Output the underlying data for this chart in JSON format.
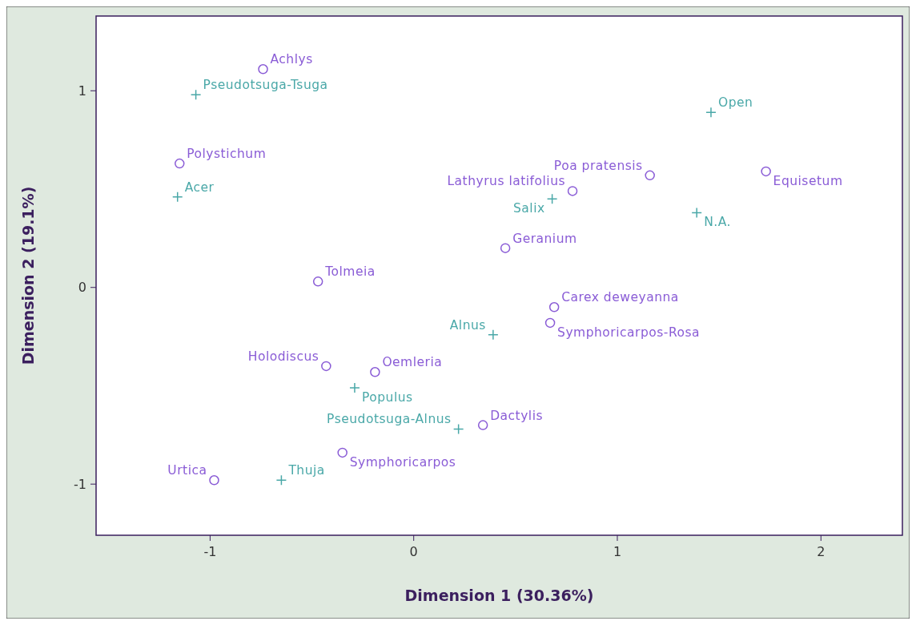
{
  "chart_data": {
    "type": "scatter",
    "xlabel": "Dimension 1 (30.36%)",
    "ylabel": "Dimension 2 (19.1%)",
    "xlim": [
      -1.56,
      2.4
    ],
    "ylim": [
      -1.26,
      1.38
    ],
    "xticks": [
      -1,
      0,
      1,
      2
    ],
    "yticks": [
      -1,
      0,
      1
    ],
    "grid": false,
    "series": [
      {
        "color": "#8a5cd6",
        "marker": "circle",
        "x": [
          -0.74,
          -1.15,
          -0.47,
          -0.43,
          -0.19,
          -0.35,
          -0.98,
          0.34,
          0.45,
          0.69,
          0.67,
          0.78,
          1.16,
          1.73
        ],
        "values": [
          1.11,
          0.63,
          0.03,
          -0.4,
          -0.43,
          -0.84,
          -0.98,
          -0.7,
          0.2,
          -0.1,
          -0.18,
          0.49,
          0.57,
          0.59
        ]
      },
      {
        "color": "#4aa8a8",
        "marker": "cross",
        "x": [
          -1.07,
          -1.16,
          1.46,
          0.68,
          1.39,
          0.39,
          -0.29,
          0.22,
          -0.65
        ],
        "values": [
          0.98,
          0.46,
          0.89,
          0.45,
          0.38,
          -0.24,
          -0.51,
          -0.72,
          -0.98
        ]
      }
    ],
    "annotations": [
      {
        "text": "Achlys",
        "x": -0.74,
        "y": 1.11
      },
      {
        "text": "Polystichum",
        "x": -1.15,
        "y": 0.63
      },
      {
        "text": "Tolmeia",
        "x": -0.47,
        "y": 0.03
      },
      {
        "text": "Holodiscus",
        "x": -0.43,
        "y": -0.4
      },
      {
        "text": "Oemleria",
        "x": -0.19,
        "y": -0.43
      },
      {
        "text": "Symphoricarpos",
        "x": -0.35,
        "y": -0.84
      },
      {
        "text": "Urtica",
        "x": -0.98,
        "y": -0.98
      },
      {
        "text": "Dactylis",
        "x": 0.34,
        "y": -0.7
      },
      {
        "text": "Geranium",
        "x": 0.45,
        "y": 0.2
      },
      {
        "text": "Carex deweyanna",
        "x": 0.69,
        "y": -0.1
      },
      {
        "text": "Symphoricarpos-Rosa",
        "x": 0.67,
        "y": -0.18
      },
      {
        "text": "Lathyrus latifolius",
        "x": 0.78,
        "y": 0.49
      },
      {
        "text": "Poa pratensis",
        "x": 1.16,
        "y": 0.57
      },
      {
        "text": "Equisetum",
        "x": 1.73,
        "y": 0.59
      },
      {
        "text": "Pseudotsuga-Tsuga",
        "x": -1.07,
        "y": 0.98
      },
      {
        "text": "Acer",
        "x": -1.16,
        "y": 0.46
      },
      {
        "text": "Open",
        "x": 1.46,
        "y": 0.89
      },
      {
        "text": "Salix",
        "x": 0.68,
        "y": 0.45
      },
      {
        "text": "N.A.",
        "x": 1.39,
        "y": 0.38
      },
      {
        "text": "Alnus",
        "x": 0.39,
        "y": -0.24
      },
      {
        "text": "Populus",
        "x": -0.29,
        "y": -0.51
      },
      {
        "text": "Pseudotsuga-Alnus",
        "x": 0.22,
        "y": -0.72
      },
      {
        "text": "Thuja",
        "x": -0.65,
        "y": -0.98
      }
    ]
  }
}
